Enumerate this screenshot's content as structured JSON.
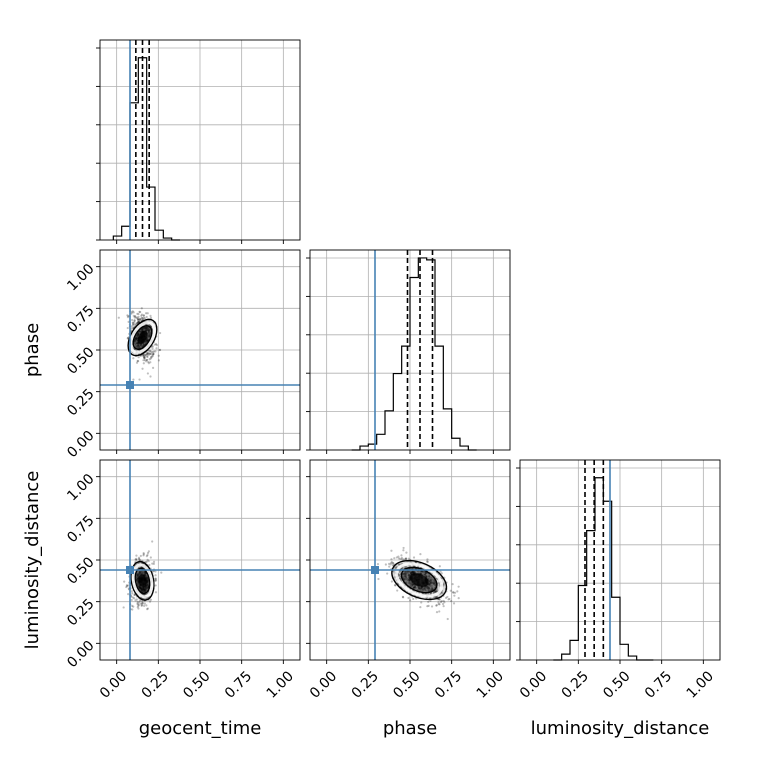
{
  "chart_data": {
    "type": "corner",
    "parameters": [
      "geocent_time",
      "phase",
      "luminosity_distance"
    ],
    "axis_range": [
      -0.1,
      1.1
    ],
    "ticks": [
      0.0,
      0.25,
      0.5,
      0.75,
      1.0
    ],
    "tick_labels": [
      "0.00",
      "0.25",
      "0.50",
      "0.75",
      "1.00"
    ],
    "grid": true,
    "injection": {
      "geocent_time": 0.08,
      "phase": 0.29,
      "luminosity_distance": 0.44
    },
    "injection_color": "#4682b4",
    "histograms": {
      "geocent_time": {
        "bins": [
          -0.02,
          0.03,
          0.08,
          0.13,
          0.18,
          0.23,
          0.28,
          0.33,
          0.38
        ],
        "heights": [
          0.02,
          0.07,
          0.7,
          0.93,
          0.27,
          0.05,
          0.01,
          0.0
        ],
        "quantiles": [
          0.115,
          0.155,
          0.195
        ]
      },
      "phase": {
        "bins": [
          0.15,
          0.2,
          0.25,
          0.3,
          0.35,
          0.4,
          0.45,
          0.5,
          0.55,
          0.6,
          0.65,
          0.7,
          0.75,
          0.8,
          0.85,
          0.9
        ],
        "heights": [
          0.0,
          0.02,
          0.03,
          0.08,
          0.2,
          0.39,
          0.53,
          0.88,
          0.98,
          0.97,
          0.53,
          0.21,
          0.06,
          0.02,
          0.0
        ],
        "quantiles": [
          0.485,
          0.56,
          0.635
        ]
      },
      "luminosity_distance": {
        "bins": [
          0.1,
          0.15,
          0.2,
          0.25,
          0.3,
          0.35,
          0.4,
          0.45,
          0.5,
          0.55,
          0.6,
          0.65,
          0.7
        ],
        "heights": [
          0.0,
          0.03,
          0.1,
          0.38,
          0.66,
          0.93,
          0.81,
          0.32,
          0.08,
          0.02,
          0.0,
          0.0
        ],
        "quantiles": [
          0.29,
          0.345,
          0.4
        ]
      }
    },
    "contours": [
      {
        "x": "geocent_time",
        "y": "phase",
        "cx": 0.155,
        "cy": 0.575,
        "sx": 0.032,
        "sy": 0.065,
        "rho": -0.3
      },
      {
        "x": "geocent_time",
        "y": "luminosity_distance",
        "cx": 0.155,
        "cy": 0.375,
        "sx": 0.032,
        "sy": 0.06,
        "rho": 0.1
      },
      {
        "x": "phase",
        "y": "luminosity_distance",
        "cx": 0.555,
        "cy": 0.38,
        "sx": 0.075,
        "sy": 0.06,
        "rho": -0.55
      }
    ]
  }
}
